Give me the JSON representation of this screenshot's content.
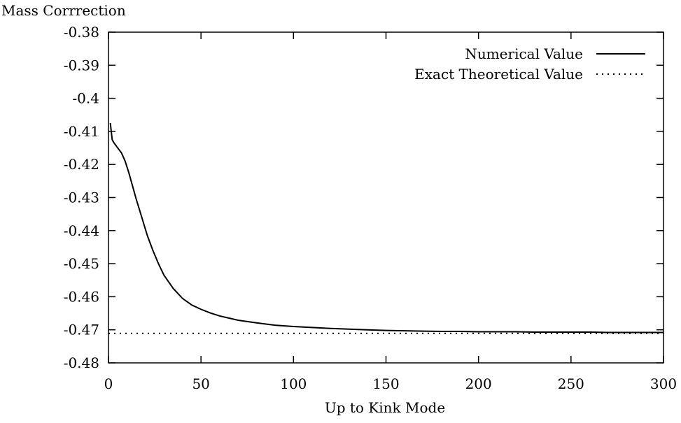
{
  "chart_data": {
    "type": "line",
    "title": "",
    "ylabel": "Mass Corrrection",
    "xlabel": "Up to Kink Mode",
    "xlim": [
      0,
      300
    ],
    "ylim": [
      -0.48,
      -0.38
    ],
    "x_ticks": [
      0,
      50,
      100,
      150,
      200,
      250,
      300
    ],
    "x_tick_labels": [
      "0",
      "50",
      "100",
      "150",
      "200",
      "250",
      "300"
    ],
    "y_ticks": [
      -0.38,
      -0.39,
      -0.4,
      -0.41,
      -0.42,
      -0.43,
      -0.44,
      -0.45,
      -0.46,
      -0.47,
      -0.48
    ],
    "y_tick_labels": [
      "-0.38",
      "-0.39",
      "-0.4",
      "-0.41",
      "-0.42",
      "-0.43",
      "-0.44",
      "-0.45",
      "-0.46",
      "-0.47",
      "-0.48"
    ],
    "grid": false,
    "legend_position": "top-right",
    "series": [
      {
        "name": "Numerical Value",
        "style": "solid",
        "x": [
          1,
          2,
          3,
          5,
          7,
          9,
          11,
          13,
          15,
          18,
          21,
          24,
          27,
          30,
          35,
          40,
          45,
          50,
          55,
          60,
          70,
          80,
          90,
          100,
          110,
          120,
          130,
          140,
          150,
          160,
          170,
          180,
          190,
          200,
          210,
          220,
          230,
          240,
          250,
          260,
          270,
          280,
          290,
          300
        ],
        "y": [
          -0.4075,
          -0.4125,
          -0.4135,
          -0.415,
          -0.4165,
          -0.419,
          -0.4225,
          -0.4265,
          -0.4305,
          -0.436,
          -0.4415,
          -0.446,
          -0.45,
          -0.4535,
          -0.4575,
          -0.4605,
          -0.4625,
          -0.4638,
          -0.4649,
          -0.4658,
          -0.4671,
          -0.4679,
          -0.4686,
          -0.469,
          -0.4693,
          -0.4696,
          -0.4698,
          -0.47,
          -0.4702,
          -0.4703,
          -0.4704,
          -0.4705,
          -0.4705,
          -0.4706,
          -0.4706,
          -0.4706,
          -0.4707,
          -0.4707,
          -0.4707,
          -0.4707,
          -0.4708,
          -0.4708,
          -0.4708,
          -0.4708
        ]
      },
      {
        "name": "Exact Theoretical Value",
        "style": "dotted",
        "x": [
          0,
          300
        ],
        "y": [
          -0.4711,
          -0.4711
        ]
      }
    ]
  }
}
